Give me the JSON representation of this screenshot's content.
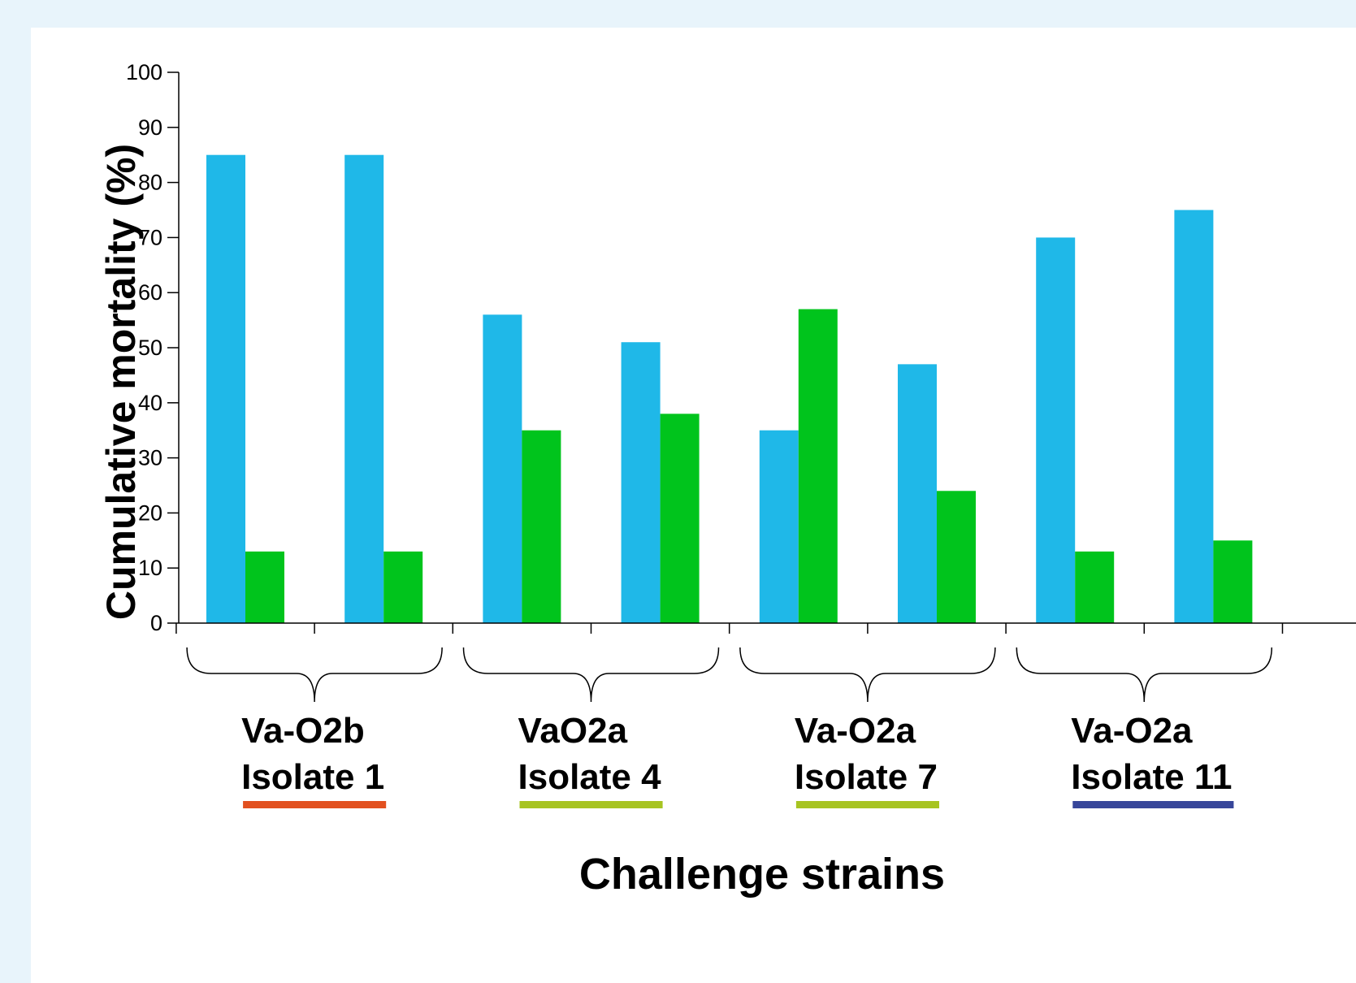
{
  "chart_data": {
    "type": "bar",
    "title": "",
    "xlabel": "Challenge strains",
    "ylabel": "Cumulative mortality (%)",
    "ylim": [
      0,
      100
    ],
    "yticks": [
      0,
      10,
      20,
      30,
      40,
      50,
      60,
      70,
      80,
      90,
      100
    ],
    "grid": false,
    "legend": "none",
    "bar_colors": [
      "#1fb8e8",
      "#00c41c"
    ],
    "series": [
      {
        "values": [
          85,
          85,
          56,
          51,
          35,
          47,
          70,
          75
        ]
      },
      {
        "values": [
          13,
          13,
          35,
          38,
          57,
          24,
          13,
          15
        ]
      }
    ],
    "groups": [
      {
        "line1": "Va-O2b",
        "line2": "Isolate 1",
        "color": "#e2501f"
      },
      {
        "line1": "VaO2a",
        "line2": "Isolate 4",
        "color": "#a7c421"
      },
      {
        "line1": "Va-O2a",
        "line2": "Isolate 7",
        "color": "#a7c421"
      },
      {
        "line1": "Va-O2a",
        "line2": "Isolate 11",
        "color": "#37469a"
      }
    ]
  }
}
